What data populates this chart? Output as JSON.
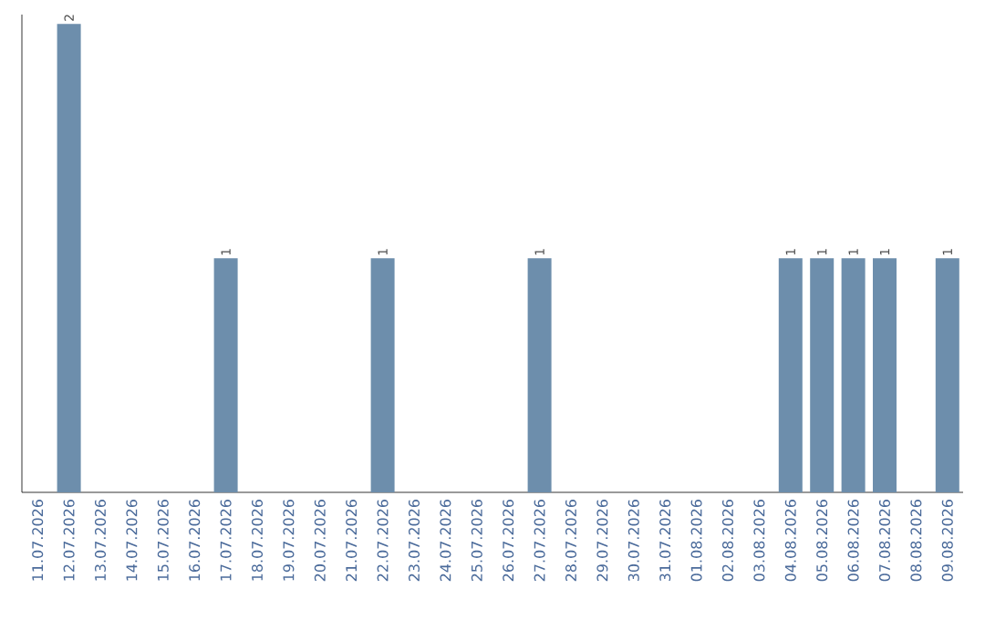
{
  "chart_data": {
    "type": "bar",
    "categories": [
      "11.07.2026",
      "12.07.2026",
      "13.07.2026",
      "14.07.2026",
      "15.07.2026",
      "16.07.2026",
      "17.07.2026",
      "18.07.2026",
      "19.07.2026",
      "20.07.2026",
      "21.07.2026",
      "22.07.2026",
      "23.07.2026",
      "24.07.2026",
      "25.07.2026",
      "26.07.2026",
      "27.07.2026",
      "28.07.2026",
      "29.07.2026",
      "30.07.2026",
      "31.07.2026",
      "01.08.2026",
      "02.08.2026",
      "03.08.2026",
      "04.08.2026",
      "05.08.2026",
      "06.08.2026",
      "07.08.2026",
      "08.08.2026",
      "09.08.2026"
    ],
    "values": [
      0,
      2,
      0,
      0,
      0,
      0,
      1,
      0,
      0,
      0,
      0,
      1,
      0,
      0,
      0,
      0,
      1,
      0,
      0,
      0,
      0,
      0,
      0,
      0,
      1,
      1,
      1,
      1,
      0,
      1
    ],
    "value_labels": [
      null,
      "2",
      null,
      null,
      null,
      null,
      "1",
      null,
      null,
      null,
      null,
      "1",
      null,
      null,
      null,
      null,
      "1",
      null,
      null,
      null,
      null,
      null,
      null,
      null,
      "1",
      "1",
      "1",
      "1",
      null,
      "1"
    ],
    "color": "#6d8eac",
    "tick_labels": "x"
  }
}
